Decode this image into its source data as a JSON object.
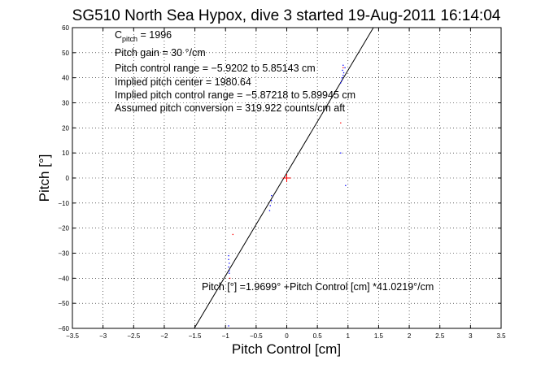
{
  "chart_data": {
    "type": "scatter",
    "title": "SG510 North Sea Hypox, dive 3 started 19-Aug-2011 16:14:04",
    "xlabel": "Pitch Control [cm]",
    "ylabel": "Pitch [°]",
    "xlim": [
      -3.5,
      3.5
    ],
    "ylim": [
      -60,
      60
    ],
    "xticks": [
      -3.5,
      -3,
      -2.5,
      -2,
      -1.5,
      -1,
      -0.5,
      0,
      0.5,
      1,
      1.5,
      2,
      2.5,
      3,
      3.5
    ],
    "yticks": [
      -60,
      -50,
      -40,
      -30,
      -20,
      -10,
      0,
      10,
      20,
      30,
      40,
      50,
      60
    ],
    "xtick_labels": [
      "−3.5",
      "−3",
      "−2.5",
      "−2",
      "−1.5",
      "−1",
      "−0.5",
      "0",
      "0.5",
      "1",
      "1.5",
      "2",
      "2.5",
      "3",
      "3.5"
    ],
    "ytick_labels": [
      "−60",
      "−50",
      "−40",
      "−30",
      "−20",
      "−10",
      "0",
      "10",
      "20",
      "30",
      "40",
      "50",
      "60"
    ],
    "grid": true,
    "grid_style": "dotted",
    "fit_line": {
      "intercept": 1.9699,
      "slope": 41.0219,
      "color": "#000000"
    },
    "series": [
      {
        "color": "#0000ff",
        "points": [
          [
            -0.95,
            -31
          ],
          [
            -0.95,
            -32.5
          ],
          [
            -0.94,
            -34
          ],
          [
            -0.95,
            -35.5
          ],
          [
            -0.94,
            -37
          ],
          [
            -0.94,
            -38
          ],
          [
            -0.95,
            -59
          ],
          [
            -0.25,
            -7
          ],
          [
            -0.25,
            -9
          ],
          [
            -0.27,
            -11
          ],
          [
            -0.28,
            -13
          ],
          [
            0.88,
            38
          ],
          [
            0.9,
            39
          ],
          [
            0.9,
            40
          ],
          [
            0.92,
            41
          ],
          [
            0.93,
            42
          ],
          [
            0.91,
            43
          ],
          [
            0.95,
            44
          ],
          [
            0.92,
            45
          ],
          [
            0.88,
            10
          ],
          [
            0.96,
            -3
          ]
        ]
      },
      {
        "color": "#ff0000",
        "points": [
          [
            -0.88,
            -22.5
          ],
          [
            0.88,
            22
          ],
          [
            0.92,
            44
          ],
          [
            -0.93,
            -40
          ]
        ]
      }
    ],
    "center_marker": {
      "x": 0,
      "y": 0,
      "color": "#ff0000",
      "shape": "plus"
    },
    "annotations": {
      "line1_main": "C",
      "line1_sub": "pitch",
      "line1_rest": " = 1996",
      "line2": "Pitch gain = 30 °/cm",
      "line3": "Pitch control range = −5.9202 to 5.85143 cm",
      "line4": "Implied pitch center = 1980.64",
      "line5": "Implied pitch control range = −5.87218 to 5.89945 cm",
      "line6": "Assumed pitch conversion = 319.922 counts/cm aft",
      "fit_label": "Pitch [°] =1.9699° +Pitch Control [cm] *41.0219°/cm"
    }
  }
}
